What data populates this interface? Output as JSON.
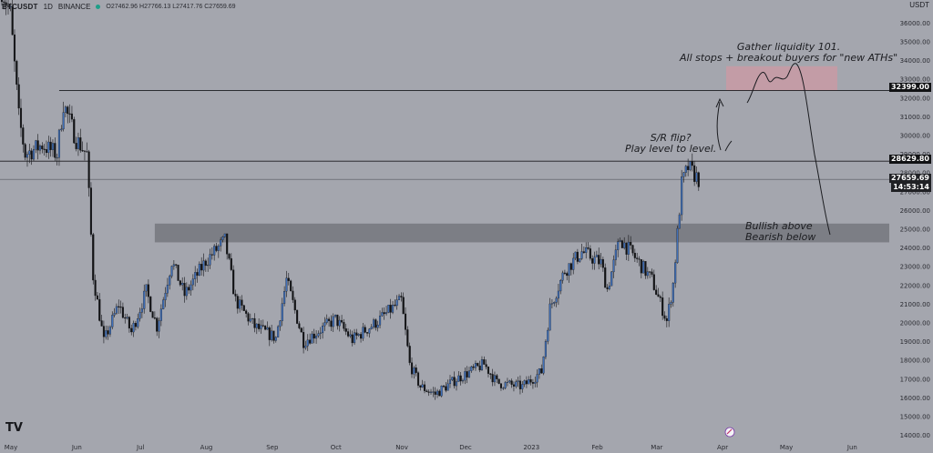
{
  "header": {
    "symbol": "BTCUSDT",
    "interval": "1D",
    "exchange": "BINANCE",
    "ohlc": "O27462.96 H27766.13 L27417.76 C27659.69"
  },
  "currency_label": "USDT",
  "logo_text": "TV",
  "price_tags": {
    "resistance": "32399.00",
    "flip_level": "28629.80",
    "last_price": "27659.69",
    "countdown": "14:53:14"
  },
  "annotations": {
    "liquidity": [
      "Gather liquidity 101.",
      "All stops + breakout buyers for \"new ATHs\""
    ],
    "sr_flip": [
      "S/R flip?",
      "Play level to level."
    ],
    "bullish": [
      "Bullish above",
      "Bearish below"
    ]
  },
  "colors": {
    "background": "#a4a6ae",
    "candle_up": "#3f6fb8",
    "candle_down": "#111214",
    "zone_gray": "#6f7077",
    "zone_red": "#c99aa5",
    "level_line": "#1a1b1f"
  },
  "chart_data": {
    "type": "candlestick",
    "title": "",
    "xlabel": "",
    "ylabel": "",
    "ylim": [
      14000,
      37000
    ],
    "y_ticks": [
      14000,
      15000,
      16000,
      17000,
      18000,
      19000,
      20000,
      21000,
      22000,
      23000,
      24000,
      25000,
      26000,
      27000,
      28000,
      29000,
      30000,
      31000,
      32000,
      33000,
      34000,
      35000,
      36000
    ],
    "x_tick_labels": [
      "May",
      "Jun",
      "Jul",
      "Aug",
      "Sep",
      "Oct",
      "Nov",
      "Dec",
      "2023",
      "Feb",
      "Mar",
      "Apr",
      "May",
      "Jun"
    ],
    "horizontal_levels": [
      32399.0,
      28629.8,
      27659.69
    ],
    "zones": [
      {
        "name": "support-resistance-zone",
        "from": 24300,
        "to": 25300
      },
      {
        "name": "liquidity-zone",
        "from": 32400,
        "to": 33700
      }
    ],
    "close_path": [
      [
        "2022-05-01",
        37800
      ],
      [
        "2022-05-05",
        36500
      ],
      [
        "2022-05-09",
        31000
      ],
      [
        "2022-05-12",
        29000
      ],
      [
        "2022-05-20",
        29500
      ],
      [
        "2022-05-27",
        29000
      ],
      [
        "2022-05-30",
        31700
      ],
      [
        "2022-06-05",
        29800
      ],
      [
        "2022-06-10",
        29000
      ],
      [
        "2022-06-13",
        22500
      ],
      [
        "2022-06-18",
        19000
      ],
      [
        "2022-06-25",
        21000
      ],
      [
        "2022-07-01",
        19500
      ],
      [
        "2022-07-08",
        21700
      ],
      [
        "2022-07-13",
        19800
      ],
      [
        "2022-07-20",
        23300
      ],
      [
        "2022-07-26",
        21500
      ],
      [
        "2022-08-05",
        23300
      ],
      [
        "2022-08-14",
        24400
      ],
      [
        "2022-08-19",
        21200
      ],
      [
        "2022-08-28",
        19800
      ],
      [
        "2022-09-07",
        19200
      ],
      [
        "2022-09-12",
        22300
      ],
      [
        "2022-09-20",
        19000
      ],
      [
        "2022-10-05",
        20200
      ],
      [
        "2022-10-13",
        19100
      ],
      [
        "2022-10-25",
        20100
      ],
      [
        "2022-11-05",
        21200
      ],
      [
        "2022-11-09",
        17800
      ],
      [
        "2022-11-14",
        16600
      ],
      [
        "2022-11-21",
        16200
      ],
      [
        "2022-12-01",
        17000
      ],
      [
        "2022-12-14",
        17800
      ],
      [
        "2022-12-20",
        16800
      ],
      [
        "2023-01-01",
        16600
      ],
      [
        "2023-01-10",
        17400
      ],
      [
        "2023-01-14",
        20800
      ],
      [
        "2023-01-21",
        22800
      ],
      [
        "2023-01-29",
        23800
      ],
      [
        "2023-02-07",
        23200
      ],
      [
        "2023-02-10",
        21800
      ],
      [
        "2023-02-16",
        24500
      ],
      [
        "2023-02-25",
        23200
      ],
      [
        "2023-03-03",
        22300
      ],
      [
        "2023-03-10",
        20100
      ],
      [
        "2023-03-13",
        22100
      ],
      [
        "2023-03-17",
        27400
      ],
      [
        "2023-03-20",
        28300
      ],
      [
        "2023-03-25",
        27660
      ]
    ]
  }
}
